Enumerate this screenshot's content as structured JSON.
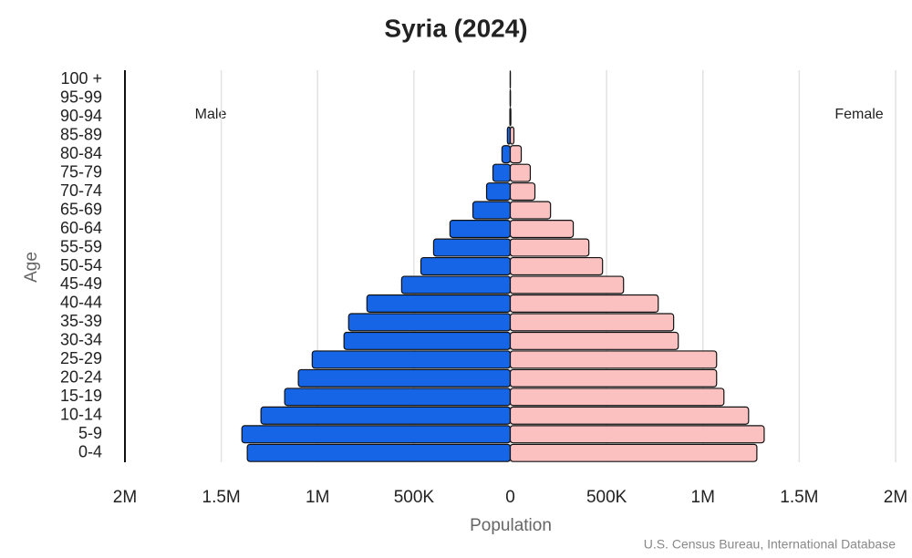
{
  "chart_data": {
    "type": "pyramid",
    "title": "Syria (2024)",
    "x_label": "Population",
    "y_label": "Age",
    "source": "U.S. Census Bureau, International Database",
    "categories": [
      "0-4",
      "5-9",
      "10-14",
      "15-19",
      "20-24",
      "25-29",
      "30-34",
      "35-39",
      "40-44",
      "45-49",
      "50-54",
      "55-59",
      "60-64",
      "65-69",
      "70-74",
      "75-79",
      "80-84",
      "85-89",
      "90-94",
      "95-99",
      "100 +"
    ],
    "series": [
      {
        "name": "Male",
        "color": "#1565e6",
        "side": "left",
        "values": [
          1365000,
          1393000,
          1294000,
          1171000,
          1100000,
          1028000,
          863000,
          839000,
          744000,
          564000,
          464000,
          398000,
          313000,
          194000,
          123000,
          90000,
          43000,
          15000,
          2000,
          500,
          100
        ]
      },
      {
        "name": "Female",
        "color": "#fbc0c0",
        "side": "right",
        "values": [
          1280000,
          1318000,
          1237000,
          1109000,
          1071000,
          1071000,
          872000,
          848000,
          768000,
          588000,
          479000,
          408000,
          327000,
          209000,
          128000,
          104000,
          57000,
          19000,
          3000,
          1000,
          300
        ]
      }
    ],
    "xlim": [
      -2000000,
      2000000
    ],
    "xticks": [
      {
        "value": -2000000,
        "label": "2M"
      },
      {
        "value": -1500000,
        "label": "1.5M"
      },
      {
        "value": -1000000,
        "label": "1M"
      },
      {
        "value": -500000,
        "label": "500K"
      },
      0,
      {
        "value": 500000,
        "label": "500K"
      },
      {
        "value": 1000000,
        "label": "1M"
      },
      {
        "value": 1500000,
        "label": "1.5M"
      },
      {
        "value": 2000000,
        "label": "2M"
      }
    ],
    "grid": true
  }
}
